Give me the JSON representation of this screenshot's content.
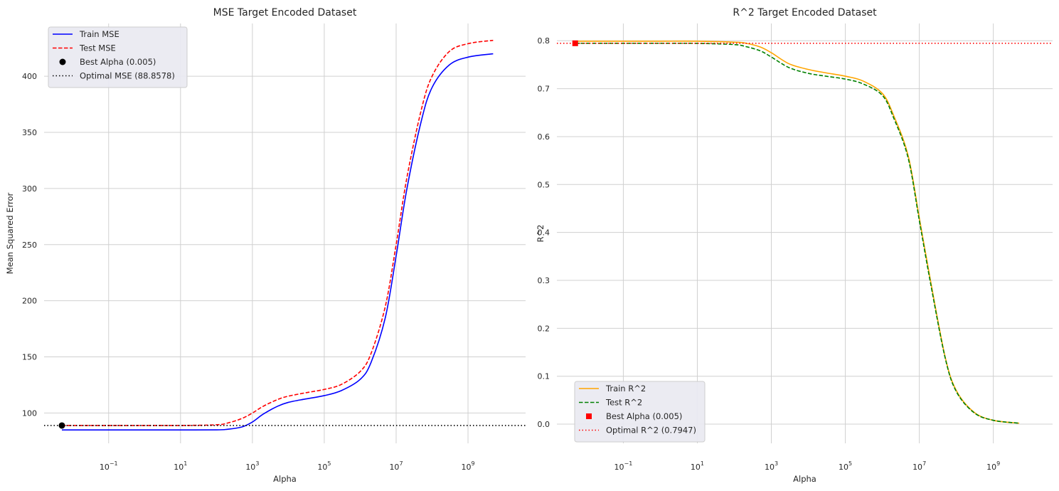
{
  "colors": {
    "train_mse": "#0000ff",
    "test_mse": "#ff0000",
    "best_alpha_mse": "#000000",
    "optimal_mse": "#000000",
    "train_r2": "#ffa500",
    "test_r2": "#008000",
    "best_alpha_r2": "#ff0000",
    "optimal_r2": "#ff0000",
    "grid": "#d0d0d0",
    "legend_bg": "#eaeaf2"
  },
  "chart_data": [
    {
      "type": "line",
      "title": "MSE Target Encoded Dataset",
      "xlabel": "Alpha",
      "ylabel": "Mean Squared Error",
      "xscale": "log",
      "xlim": [
        0.0016,
        40000000000
      ],
      "ylim": [
        73,
        447
      ],
      "xticks": [
        0.1,
        10,
        1000,
        100000,
        10000000,
        1000000000
      ],
      "xtick_labels": [
        {
          "base": "10",
          "exp": "−1"
        },
        {
          "base": "10",
          "exp": "1"
        },
        {
          "base": "10",
          "exp": "3"
        },
        {
          "base": "10",
          "exp": "5"
        },
        {
          "base": "10",
          "exp": "7"
        },
        {
          "base": "10",
          "exp": "9"
        }
      ],
      "yticks": [
        100,
        150,
        200,
        250,
        300,
        350,
        400
      ],
      "ytick_labels": [
        "100",
        "150",
        "200",
        "250",
        "300",
        "350",
        "400"
      ],
      "grid": true,
      "legend_position": "upper-left",
      "series": [
        {
          "name": "Train MSE",
          "style": "solid",
          "color": "#0000ff",
          "x": [
            0.005,
            0.1,
            1,
            10,
            100,
            200,
            500,
            1000,
            2000,
            5000,
            10000,
            30000,
            100000,
            300000,
            1000000,
            2000000,
            5000000,
            10000000,
            20000000,
            50000000,
            100000000,
            300000000,
            1000000000,
            5000000000
          ],
          "y": [
            84.9,
            84.9,
            84.9,
            84.9,
            85.0,
            85.5,
            87.5,
            92,
            99,
            106,
            109.5,
            112.5,
            115.5,
            120,
            130,
            145,
            185,
            240,
            300,
            360,
            390,
            410,
            417,
            420
          ]
        },
        {
          "name": "Test MSE",
          "style": "dashed",
          "color": "#ff0000",
          "x": [
            0.005,
            0.1,
            1,
            10,
            100,
            200,
            500,
            1000,
            2000,
            5000,
            10000,
            30000,
            100000,
            300000,
            1000000,
            2000000,
            5000000,
            10000000,
            20000000,
            50000000,
            100000000,
            300000000,
            1000000000,
            5000000000
          ],
          "y": [
            88.9,
            88.9,
            88.9,
            88.9,
            89.5,
            91,
            95,
            100,
            106,
            112,
            115,
            118,
            121,
            125.5,
            137,
            153,
            195,
            250,
            310,
            370,
            400,
            422,
            429,
            432
          ]
        },
        {
          "name": "Best Alpha (0.005)",
          "style": "marker",
          "marker": "circle",
          "color": "#000000",
          "x": [
            0.005
          ],
          "y": [
            88.8578
          ]
        },
        {
          "name": "Optimal MSE (88.8578)",
          "style": "dotted-hline",
          "color": "#000000",
          "y": 88.8578
        }
      ]
    },
    {
      "type": "line",
      "title": "R^2 Target Encoded Dataset",
      "xlabel": "Alpha",
      "ylabel": "R^2",
      "xscale": "log",
      "xlim": [
        0.0016,
        40000000000
      ],
      "ylim": [
        -0.04,
        0.836
      ],
      "xticks": [
        0.1,
        10,
        1000,
        100000,
        10000000,
        1000000000
      ],
      "xtick_labels": [
        {
          "base": "10",
          "exp": "−1"
        },
        {
          "base": "10",
          "exp": "1"
        },
        {
          "base": "10",
          "exp": "3"
        },
        {
          "base": "10",
          "exp": "5"
        },
        {
          "base": "10",
          "exp": "7"
        },
        {
          "base": "10",
          "exp": "9"
        }
      ],
      "yticks": [
        0.0,
        0.1,
        0.2,
        0.3,
        0.4,
        0.5,
        0.6,
        0.7,
        0.8
      ],
      "ytick_labels": [
        "0.0",
        "0.1",
        "0.2",
        "0.3",
        "0.4",
        "0.5",
        "0.6",
        "0.7",
        "0.8"
      ],
      "grid": true,
      "legend_position": "lower-left",
      "series": [
        {
          "name": "Train R^2",
          "style": "solid",
          "color": "#ffa500",
          "x": [
            0.005,
            0.1,
            1,
            10,
            100,
            200,
            500,
            1000,
            3000,
            10000,
            30000,
            100000,
            300000,
            1000000,
            2000000,
            5000000,
            10000000,
            20000000,
            50000000,
            100000000,
            300000000,
            1000000000,
            5000000000
          ],
          "y": [
            0.799,
            0.799,
            0.799,
            0.799,
            0.797,
            0.795,
            0.787,
            0.775,
            0.752,
            0.74,
            0.733,
            0.726,
            0.716,
            0.69,
            0.645,
            0.56,
            0.43,
            0.3,
            0.14,
            0.07,
            0.025,
            0.008,
            0.002
          ]
        },
        {
          "name": "Test R^2",
          "style": "dashed",
          "color": "#008000",
          "x": [
            0.005,
            0.1,
            1,
            10,
            100,
            200,
            500,
            1000,
            3000,
            10000,
            30000,
            100000,
            300000,
            1000000,
            2000000,
            5000000,
            10000000,
            20000000,
            50000000,
            100000000,
            300000000,
            1000000000,
            5000000000
          ],
          "y": [
            0.7947,
            0.7947,
            0.7947,
            0.7945,
            0.792,
            0.788,
            0.779,
            0.766,
            0.744,
            0.732,
            0.726,
            0.72,
            0.71,
            0.686,
            0.64,
            0.555,
            0.425,
            0.295,
            0.138,
            0.068,
            0.024,
            0.008,
            0.002
          ]
        },
        {
          "name": "Best Alpha (0.005)",
          "style": "marker",
          "marker": "square",
          "color": "#ff0000",
          "x": [
            0.005
          ],
          "y": [
            0.7947
          ]
        },
        {
          "name": "Optimal R^2 (0.7947)",
          "style": "dotted-hline",
          "color": "#ff0000",
          "y": 0.7947
        }
      ]
    }
  ]
}
